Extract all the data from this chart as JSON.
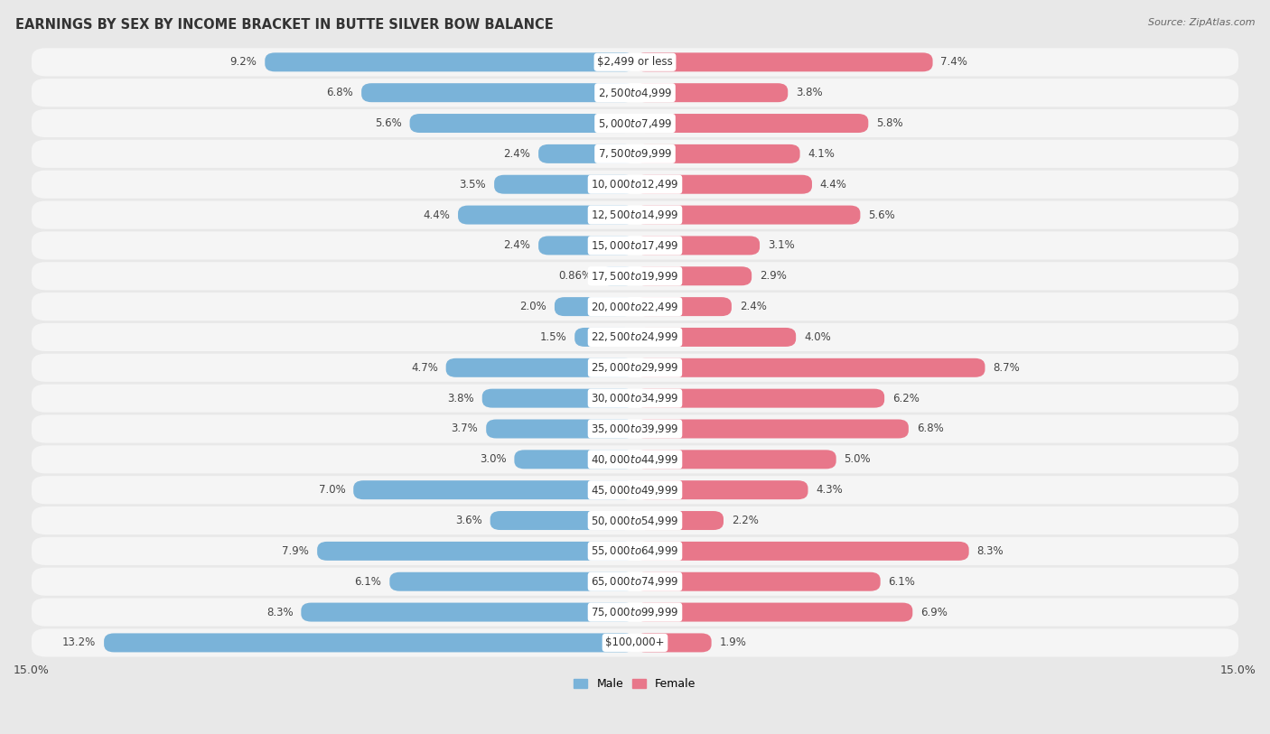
{
  "title": "EARNINGS BY SEX BY INCOME BRACKET IN BUTTE SILVER BOW BALANCE",
  "source": "Source: ZipAtlas.com",
  "categories": [
    "$2,499 or less",
    "$2,500 to $4,999",
    "$5,000 to $7,499",
    "$7,500 to $9,999",
    "$10,000 to $12,499",
    "$12,500 to $14,999",
    "$15,000 to $17,499",
    "$17,500 to $19,999",
    "$20,000 to $22,499",
    "$22,500 to $24,999",
    "$25,000 to $29,999",
    "$30,000 to $34,999",
    "$35,000 to $39,999",
    "$40,000 to $44,999",
    "$45,000 to $49,999",
    "$50,000 to $54,999",
    "$55,000 to $64,999",
    "$65,000 to $74,999",
    "$75,000 to $99,999",
    "$100,000+"
  ],
  "male_values": [
    9.2,
    6.8,
    5.6,
    2.4,
    3.5,
    4.4,
    2.4,
    0.86,
    2.0,
    1.5,
    4.7,
    3.8,
    3.7,
    3.0,
    7.0,
    3.6,
    7.9,
    6.1,
    8.3,
    13.2
  ],
  "female_values": [
    7.4,
    3.8,
    5.8,
    4.1,
    4.4,
    5.6,
    3.1,
    2.9,
    2.4,
    4.0,
    8.7,
    6.2,
    6.8,
    5.0,
    4.3,
    2.2,
    8.3,
    6.1,
    6.9,
    1.9
  ],
  "male_color": "#7ab3d9",
  "female_color": "#e8778a",
  "male_label": "Male",
  "female_label": "Female",
  "xlim": 15.0,
  "bg_color": "#e8e8e8",
  "row_color": "#f5f5f5",
  "bar_bg_color": "#ffffff",
  "title_fontsize": 10.5,
  "label_fontsize": 8.5,
  "tick_fontsize": 9,
  "value_fontsize": 8.5
}
